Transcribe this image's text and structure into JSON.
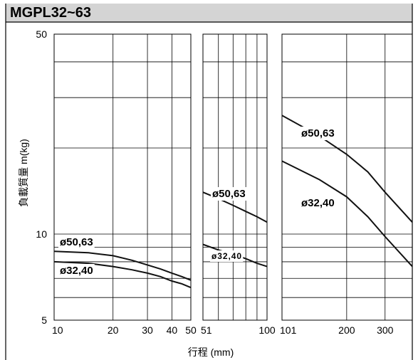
{
  "chart_data": {
    "type": "line",
    "title": "MGPL32~63",
    "xlabel": "行程 (mm)",
    "ylabel": "負載質量 m(kg)",
    "yscale": "log",
    "ylim": [
      5,
      50
    ],
    "y_tick_labels": [
      "50",
      "10",
      "5"
    ],
    "panels": [
      {
        "xscale": "log",
        "xlim": [
          10,
          50
        ],
        "x_tick_labels": [
          "10",
          "20",
          "30",
          "40",
          "50"
        ],
        "x_ticks": [
          10,
          20,
          30,
          40,
          50
        ],
        "series": [
          {
            "name": "ø50,63",
            "x": [
              10,
              15,
              20,
              25,
              30,
              35,
              40,
              45,
              50
            ],
            "y": [
              8.7,
              8.6,
              8.4,
              8.1,
              7.8,
              7.55,
              7.3,
              7.1,
              6.9
            ]
          },
          {
            "name": "ø32,40",
            "x": [
              10,
              15,
              20,
              25,
              30,
              35,
              40,
              45,
              50
            ],
            "y": [
              8.0,
              7.9,
              7.7,
              7.5,
              7.3,
              7.1,
              6.85,
              6.7,
              6.5
            ]
          }
        ]
      },
      {
        "xscale": "log",
        "xlim": [
          51,
          100
        ],
        "x_tick_labels": [
          "51",
          "100"
        ],
        "x_ticks": [
          51,
          100
        ],
        "series": [
          {
            "name": "ø50,63",
            "x": [
              51,
              60,
              70,
              80,
              90,
              100
            ],
            "y": [
              14.0,
              13.3,
              12.6,
              12.0,
              11.5,
              11.0
            ]
          },
          {
            "name": "ø32,40",
            "x": [
              51,
              60,
              70,
              80,
              90,
              100
            ],
            "y": [
              9.2,
              8.8,
              8.5,
              8.2,
              7.9,
              7.7
            ]
          }
        ]
      },
      {
        "xscale": "log",
        "xlim": [
          101,
          400
        ],
        "x_tick_labels": [
          "101",
          "200",
          "300"
        ],
        "x_ticks": [
          101,
          200,
          300
        ],
        "series": [
          {
            "name": "ø50,63",
            "x": [
              101,
              150,
              200,
              250,
              300,
              400
            ],
            "y": [
              26.0,
              22.0,
              19.0,
              16.5,
              14.0,
              11.0
            ]
          },
          {
            "name": "ø32,40",
            "x": [
              101,
              150,
              200,
              250,
              300,
              400
            ],
            "y": [
              18.0,
              15.5,
              13.5,
              11.5,
              9.8,
              7.7
            ]
          }
        ]
      }
    ]
  }
}
